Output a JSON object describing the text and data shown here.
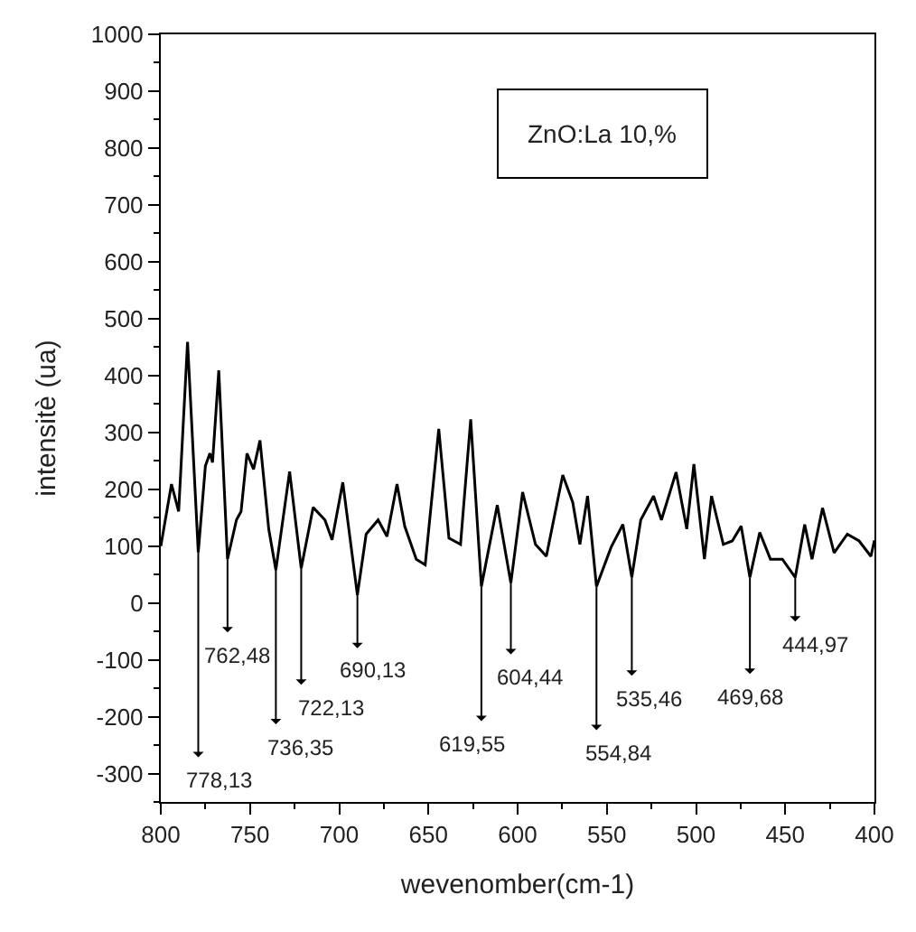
{
  "chart_data": {
    "type": "line",
    "xlabel": "wevenomber(cm-1)",
    "ylabel": "intensitè (ua)",
    "xlim": [
      800,
      400
    ],
    "xticks": [
      800,
      750,
      700,
      650,
      600,
      550,
      500,
      450,
      400
    ],
    "ylim": [
      -350,
      1000
    ],
    "yticks": [
      -300,
      -200,
      -100,
      0,
      100,
      200,
      300,
      400,
      500,
      600,
      700,
      800,
      900,
      1000
    ],
    "marker": "none",
    "line_style": "solid",
    "series": [
      {
        "color": "#000000",
        "x": [
          800,
          794,
          790,
          785,
          779,
          775,
          772.5,
          771,
          767.5,
          762.6,
          757.6,
          755,
          751.7,
          748,
          744.4,
          739.5,
          735.5,
          727.8,
          721.3,
          714.6,
          708,
          704,
          698,
          689.8,
          684.9,
          678.2,
          673.2,
          667.6,
          663.3,
          656.8,
          651.8,
          644.2,
          638.5,
          632,
          626.3,
          620.3,
          611.4,
          603.8,
          597.2,
          590,
          583.9,
          574.7,
          569.1,
          565.1,
          560.8,
          555.8,
          547.6,
          541,
          536,
          531,
          523.8,
          519.4,
          511.2,
          505.2,
          501.2,
          495.3,
          491.3,
          484.7,
          479.7,
          474.7,
          469.8,
          464.3,
          458.3,
          451.6,
          444.4,
          439.1,
          435,
          429.1,
          422.6,
          415.2,
          408.6,
          402,
          400
        ],
        "values": [
          100,
          209,
          161,
          459,
          89,
          241,
          263,
          247,
          409,
          77,
          146,
          161,
          263,
          235,
          286,
          130,
          58,
          231,
          61,
          168,
          146,
          111,
          212,
          14,
          121,
          146,
          117,
          209,
          135,
          77,
          67,
          306,
          114,
          103,
          323,
          29,
          172,
          35,
          195,
          103,
          82,
          225,
          177,
          103,
          188,
          29,
          98,
          138,
          45,
          146,
          188,
          146,
          230,
          130,
          244,
          77,
          188,
          103,
          109,
          135,
          45,
          124,
          77,
          77,
          45,
          138,
          77,
          167,
          88,
          121,
          109,
          82,
          110
        ]
      }
    ],
    "annotations": [
      {
        "text": "778,13",
        "x": 779,
        "y": 89
      },
      {
        "text": "762,48",
        "x": 762.6,
        "y": 77
      },
      {
        "text": "736,35",
        "x": 735.5,
        "y": 58
      },
      {
        "text": "722,13",
        "x": 721.3,
        "y": 61
      },
      {
        "text": "690,13",
        "x": 689.8,
        "y": 14
      },
      {
        "text": "619,55",
        "x": 620.3,
        "y": 29
      },
      {
        "text": "604,44",
        "x": 603.8,
        "y": 35
      },
      {
        "text": "554,84",
        "x": 555.8,
        "y": 29
      },
      {
        "text": "535,46",
        "x": 536,
        "y": 45
      },
      {
        "text": "469,68",
        "x": 469.8,
        "y": 45
      },
      {
        "text": "444,97",
        "x": 444.4,
        "y": 45
      },
      "ZnO:La 10,%"
    ]
  }
}
